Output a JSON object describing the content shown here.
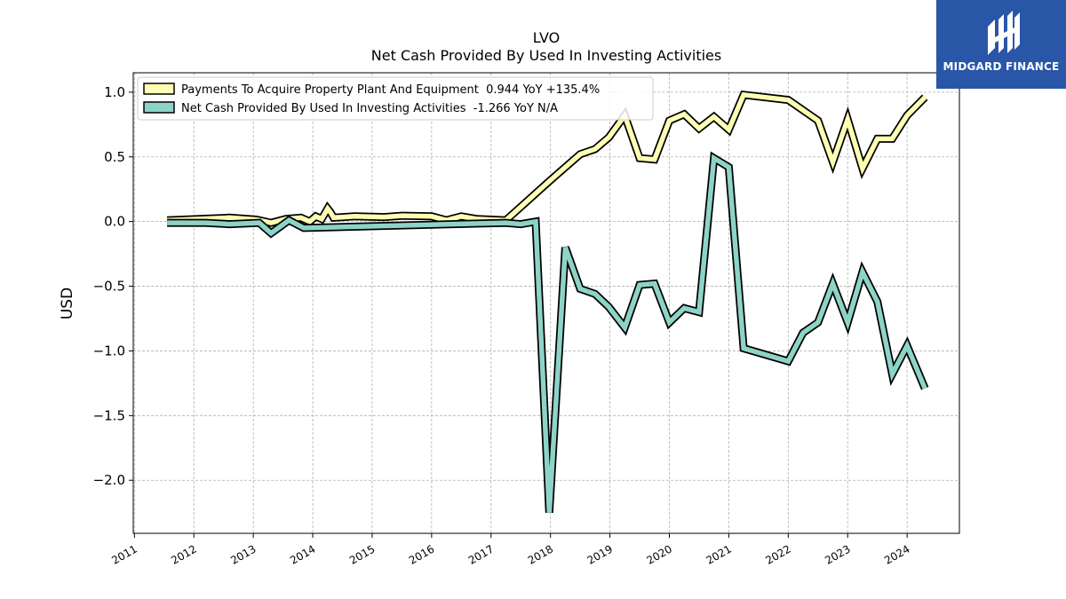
{
  "chart_data": {
    "type": "line",
    "title": "LVO",
    "subtitle": "Net Cash Provided By Used In Investing Activities",
    "ylabel": "USD",
    "xlabel": "",
    "xlim": [
      2010.98,
      2024.88
    ],
    "ylim": [
      -2.41,
      1.15
    ],
    "x_ticks": [
      2011,
      2012,
      2013,
      2014,
      2015,
      2016,
      2017,
      2018,
      2019,
      2020,
      2021,
      2022,
      2023,
      2024
    ],
    "y_ticks": [
      1.0,
      0.5,
      0.0,
      -0.5,
      -1.0,
      -1.5,
      -2.0
    ],
    "y_tick_labels": [
      "1.0",
      "0.5",
      "0.0",
      "−0.5",
      "−1.0",
      "−1.5",
      "−2.0"
    ],
    "grid": true,
    "legend_position": "top-left",
    "series": [
      {
        "name": "Payments To Acquire Property Plant And Equipment  0.944 YoY +135.4%",
        "color": "#ffffb3",
        "points": [
          [
            2011.55,
            0.01
          ],
          [
            2012.1,
            0.02
          ],
          [
            2012.6,
            0.03
          ],
          [
            2013.05,
            0.015
          ],
          [
            2013.3,
            -0.01
          ],
          [
            2013.55,
            0.02
          ],
          [
            2013.8,
            0.03
          ],
          [
            2013.95,
            0.0
          ],
          [
            2014.05,
            0.04
          ],
          [
            2014.15,
            0.02
          ],
          [
            2014.25,
            0.1
          ],
          [
            2014.3,
            0.07
          ],
          [
            2014.35,
            0.03
          ],
          [
            2014.7,
            0.04
          ],
          [
            2015.2,
            0.035
          ],
          [
            2015.5,
            0.045
          ],
          [
            2016.0,
            0.04
          ],
          [
            2016.25,
            0.01
          ],
          [
            2016.5,
            0.04
          ],
          [
            2016.75,
            0.02
          ],
          [
            2017.25,
            0.01
          ],
          [
            2018.0,
            0.32
          ],
          [
            2018.5,
            0.52
          ],
          [
            2018.75,
            0.56
          ],
          [
            2018.98,
            0.65
          ],
          [
            2019.25,
            0.82
          ],
          [
            2019.5,
            0.49
          ],
          [
            2019.75,
            0.48
          ],
          [
            2020.0,
            0.78
          ],
          [
            2020.25,
            0.83
          ],
          [
            2020.5,
            0.72
          ],
          [
            2020.75,
            0.81
          ],
          [
            2021.0,
            0.71
          ],
          [
            2021.25,
            0.98
          ],
          [
            2022.0,
            0.94
          ],
          [
            2022.5,
            0.78
          ],
          [
            2022.75,
            0.46
          ],
          [
            2023.0,
            0.79
          ],
          [
            2023.25,
            0.41
          ],
          [
            2023.5,
            0.64
          ],
          [
            2023.75,
            0.64
          ],
          [
            2024.0,
            0.82
          ],
          [
            2024.3,
            0.96
          ]
        ]
      },
      {
        "name": "Net Cash Provided By Used In Investing Activities  -1.266 YoY N/A",
        "color": "#8dd3c7",
        "points": [
          [
            2011.55,
            -0.01
          ],
          [
            2012.2,
            -0.01
          ],
          [
            2012.6,
            -0.02
          ],
          [
            2013.1,
            -0.01
          ],
          [
            2013.3,
            -0.09
          ],
          [
            2013.6,
            0.01
          ],
          [
            2013.85,
            -0.05
          ],
          [
            2017.25,
            -0.01
          ],
          [
            2017.5,
            -0.02
          ],
          [
            2017.75,
            0.0
          ],
          [
            2017.98,
            -2.25
          ],
          [
            2018.25,
            -0.2
          ],
          [
            2018.5,
            -0.52
          ],
          [
            2018.75,
            -0.56
          ],
          [
            2018.98,
            -0.66
          ],
          [
            2019.25,
            -0.82
          ],
          [
            2019.5,
            -0.49
          ],
          [
            2019.75,
            -0.48
          ],
          [
            2020.0,
            -0.78
          ],
          [
            2020.25,
            -0.67
          ],
          [
            2020.5,
            -0.7
          ],
          [
            2020.75,
            0.49
          ],
          [
            2021.0,
            0.42
          ],
          [
            2021.25,
            -0.98
          ],
          [
            2022.0,
            -1.08
          ],
          [
            2022.25,
            -0.86
          ],
          [
            2022.5,
            -0.78
          ],
          [
            2022.75,
            -0.48
          ],
          [
            2023.0,
            -0.78
          ],
          [
            2023.25,
            -0.39
          ],
          [
            2023.5,
            -0.62
          ],
          [
            2023.75,
            -1.18
          ],
          [
            2024.0,
            -0.96
          ],
          [
            2024.3,
            -1.29
          ]
        ]
      }
    ]
  },
  "logo": {
    "text": "MIDGARD FINANCE",
    "background": "#2a56a8"
  }
}
